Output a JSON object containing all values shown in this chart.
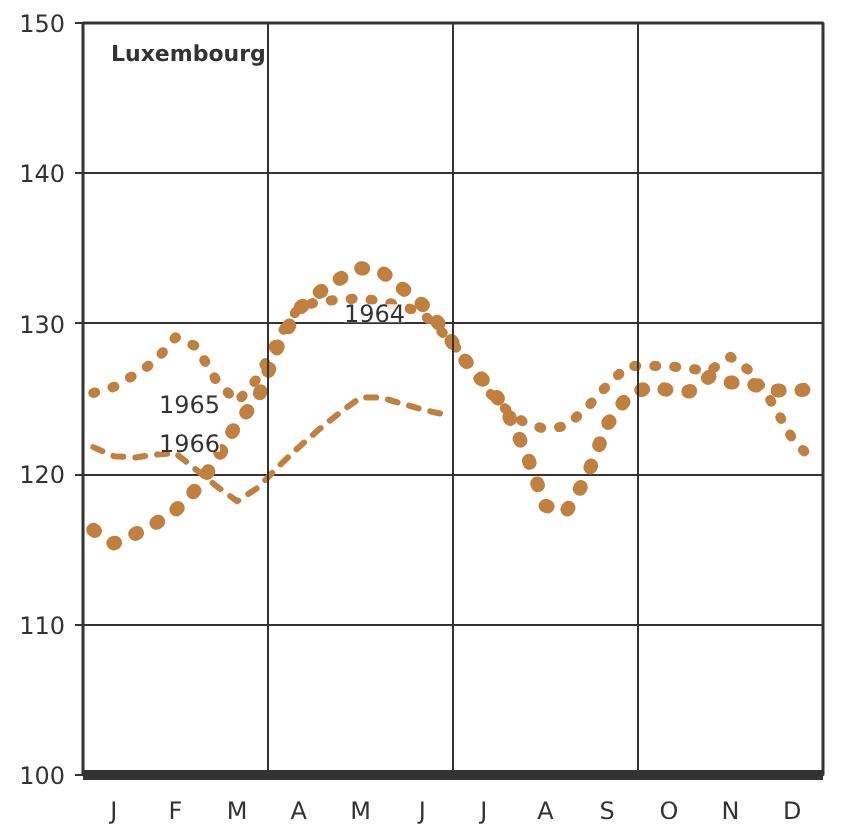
{
  "chart_data": {
    "type": "line",
    "title": "Luxembourg",
    "categories": [
      null,
      "J",
      null,
      null,
      "F",
      null,
      null,
      "M",
      null,
      null,
      "A",
      null,
      null,
      "M",
      null,
      null,
      "J",
      null,
      null,
      "J",
      null,
      null,
      "A",
      null,
      null,
      "S",
      null,
      null,
      "O",
      null,
      null,
      "N",
      null,
      null,
      "D",
      null
    ],
    "ylim": [
      100,
      150
    ],
    "yticks": [
      100,
      110,
      120,
      130,
      140,
      150
    ],
    "grid": true,
    "series": [
      {
        "name": "1964",
        "color": "#c0803f",
        "line_style": "dotted",
        "values": [
          116.3,
          115.4,
          116,
          116.7,
          117.6,
          119,
          121,
          123.4,
          125,
          128.6,
          131,
          132.1,
          133,
          133.7,
          133.5,
          132.4,
          131.3,
          129.7,
          127.7,
          126.2,
          124.5,
          121.6,
          117.9,
          117.5,
          119.8,
          123.3,
          125.2,
          125.8,
          125.6,
          125.5,
          126.5,
          126.1,
          126,
          125.6,
          125.5,
          125.7
        ]
      },
      {
        "name": "1965",
        "color": "#c0803f",
        "line_style": "dotted",
        "values": [
          125.4,
          125.8,
          126.6,
          127.5,
          129.1,
          128.5,
          126.2,
          124.8,
          126.4,
          129.1,
          131.1,
          131.5,
          131.6,
          131.7,
          131.5,
          131.2,
          130.7,
          129.4,
          127.9,
          125.8,
          124.4,
          123.4,
          123,
          123.2,
          124.4,
          125.9,
          127.2,
          127.2,
          127.2,
          127,
          126.9,
          127.8,
          126.8,
          124.8,
          122.4,
          120.9
        ]
      },
      {
        "name": "1966",
        "color": "#c0803f",
        "line_style": "dashed",
        "values": [
          121.8,
          121.2,
          121.1,
          121.3,
          121.4,
          120.3,
          119.2,
          118.2,
          119.1,
          120.5,
          121.8,
          123,
          124.1,
          125.1,
          125.1,
          124.7,
          124.3,
          124,
          null,
          null,
          null,
          null,
          null,
          null,
          null,
          null,
          null,
          null,
          null,
          null,
          null,
          null,
          null,
          null,
          null,
          null
        ]
      }
    ]
  }
}
